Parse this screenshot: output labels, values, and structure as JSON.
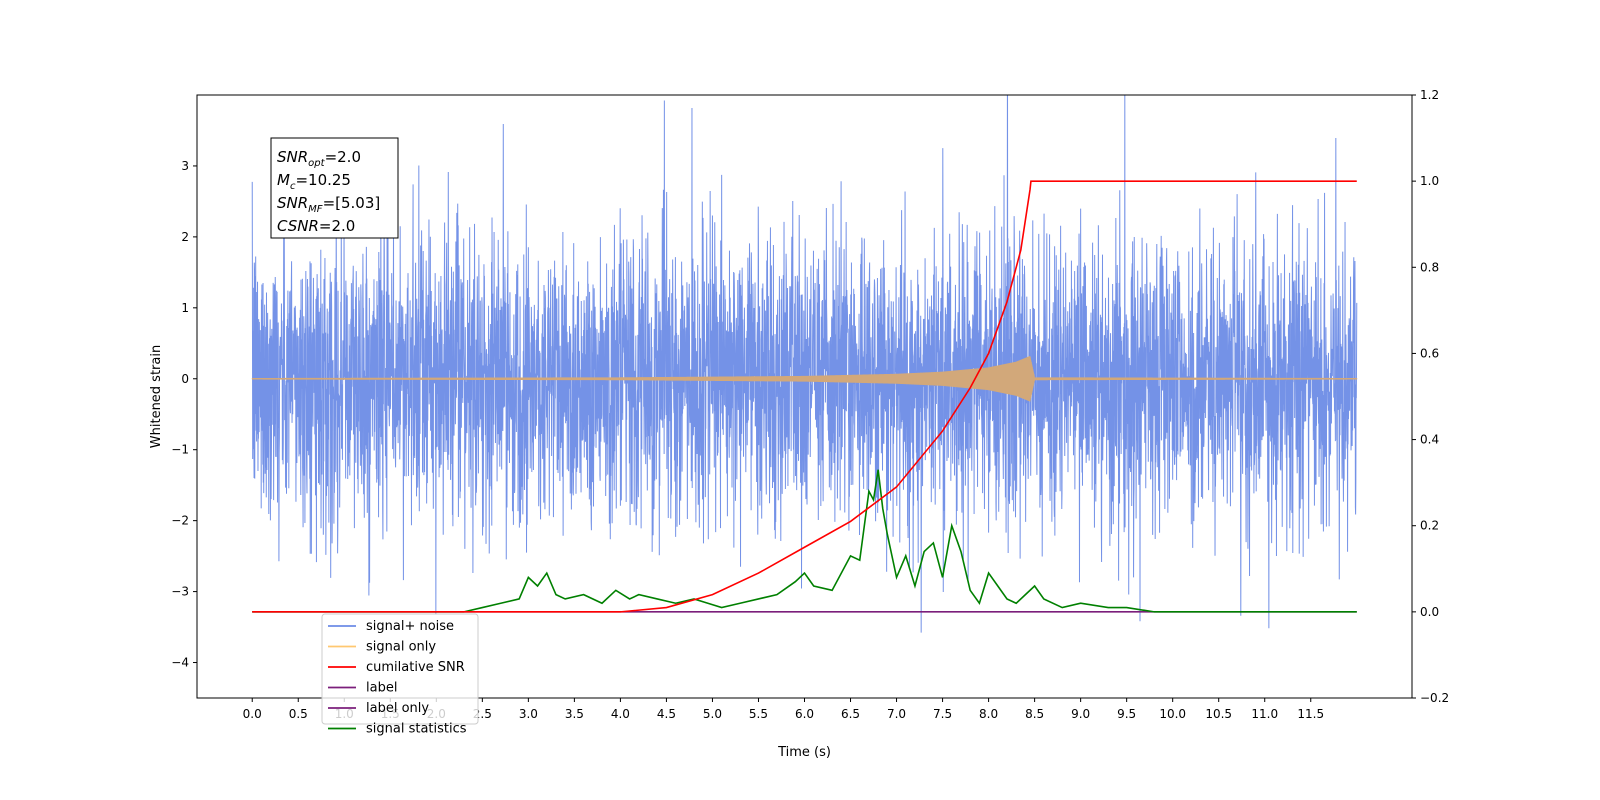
{
  "chart_data": {
    "type": "line",
    "xlabel": "Time (s)",
    "ylabel": "Whitened strain",
    "xlim": [
      -0.6,
      12.6
    ],
    "ylim": [
      -4.5,
      4.0
    ],
    "y2lim": [
      -0.2,
      1.2
    ],
    "x_ticks": [
      "0.0",
      "0.5",
      "1.0",
      "1.5",
      "2.0",
      "2.5",
      "3.0",
      "3.5",
      "4.0",
      "4.5",
      "5.0",
      "5.5",
      "6.0",
      "6.5",
      "7.0",
      "7.5",
      "8.0",
      "8.5",
      "9.0",
      "9.5",
      "10.0",
      "10.5",
      "11.0",
      "11.5"
    ],
    "y_ticks": [
      "−4",
      "−3",
      "−2",
      "−1",
      "0",
      "1",
      "2",
      "3"
    ],
    "y2_ticks": [
      "−0.2",
      "0.0",
      "0.2",
      "0.4",
      "0.6",
      "0.8",
      "1.0",
      "1.2"
    ],
    "annotation": [
      {
        "base": "SNR",
        "sub": "opt",
        "value": "=2.0"
      },
      {
        "base": "M",
        "sub": "c",
        "value": "=10.25"
      },
      {
        "base": "SNR",
        "sub": "MF",
        "value": "=[5.03]"
      },
      {
        "base": "CSNR",
        "sub": "",
        "value": "=2.0"
      }
    ],
    "legend_position": "lower-left",
    "legend": [
      {
        "name": "signal+ noise",
        "color": "#6d8ce6"
      },
      {
        "name": "signal only",
        "color": "#ffc870"
      },
      {
        "name": "cumilative SNR",
        "color": "#ff0000"
      },
      {
        "name": "label",
        "color": "#7b1f7b"
      },
      {
        "name": "label only",
        "color": "#7b1f7b"
      },
      {
        "name": "signal statistics",
        "color": "#008000"
      }
    ],
    "series": [
      {
        "name": "signal+ noise",
        "axis": "left",
        "color": "#6d8ce6",
        "description_range": [
          0,
          12
        ],
        "noise_std": 1.0
      },
      {
        "name": "signal only",
        "axis": "left",
        "color": "#d2a87a",
        "envelope": {
          "x": [
            0,
            4,
            6,
            7,
            7.5,
            8,
            8.3,
            8.45,
            8.5,
            12
          ],
          "y": [
            0.01,
            0.02,
            0.04,
            0.07,
            0.1,
            0.16,
            0.24,
            0.32,
            0.02,
            0.01
          ]
        }
      },
      {
        "name": "cumilative SNR",
        "axis": "right",
        "color": "#ff0000",
        "x": [
          0,
          4.0,
          4.5,
          5.0,
          5.5,
          6.0,
          6.5,
          7.0,
          7.5,
          7.8,
          8.0,
          8.2,
          8.35,
          8.45,
          8.46,
          12.0
        ],
        "y": [
          0.0,
          0.0,
          0.01,
          0.04,
          0.09,
          0.15,
          0.21,
          0.29,
          0.42,
          0.52,
          0.6,
          0.72,
          0.84,
          0.98,
          1.0,
          1.0
        ]
      },
      {
        "name": "label",
        "axis": "right",
        "color": "#7b1f7b",
        "x": [
          0,
          12.0
        ],
        "y": [
          0.0,
          0.0
        ]
      },
      {
        "name": "signal statistics",
        "axis": "right",
        "color": "#008000",
        "x": [
          0,
          0.5,
          1.0,
          1.5,
          2.0,
          2.3,
          2.5,
          2.7,
          2.9,
          3.0,
          3.1,
          3.2,
          3.3,
          3.4,
          3.6,
          3.8,
          3.95,
          4.1,
          4.2,
          4.4,
          4.6,
          4.8,
          4.95,
          5.1,
          5.3,
          5.5,
          5.7,
          5.9,
          6.0,
          6.1,
          6.3,
          6.5,
          6.6,
          6.7,
          6.75,
          6.8,
          6.85,
          6.9,
          7.0,
          7.1,
          7.2,
          7.3,
          7.4,
          7.5,
          7.6,
          7.7,
          7.8,
          7.9,
          8.0,
          8.1,
          8.2,
          8.3,
          8.4,
          8.5,
          8.6,
          8.8,
          9.0,
          9.3,
          9.5,
          9.8,
          10.2,
          10.5,
          11.0,
          12.0
        ],
        "y": [
          0.0,
          0.0,
          0.0,
          0.0,
          0.0,
          0.0,
          0.01,
          0.02,
          0.03,
          0.08,
          0.06,
          0.09,
          0.04,
          0.03,
          0.04,
          0.02,
          0.05,
          0.03,
          0.04,
          0.03,
          0.02,
          0.03,
          0.02,
          0.01,
          0.02,
          0.03,
          0.04,
          0.07,
          0.09,
          0.06,
          0.05,
          0.13,
          0.12,
          0.28,
          0.26,
          0.33,
          0.24,
          0.18,
          0.08,
          0.13,
          0.06,
          0.14,
          0.16,
          0.08,
          0.2,
          0.14,
          0.05,
          0.02,
          0.09,
          0.06,
          0.03,
          0.02,
          0.04,
          0.06,
          0.03,
          0.01,
          0.02,
          0.01,
          0.01,
          0.0,
          0.0,
          0.0,
          0.0,
          0.0
        ]
      }
    ]
  }
}
